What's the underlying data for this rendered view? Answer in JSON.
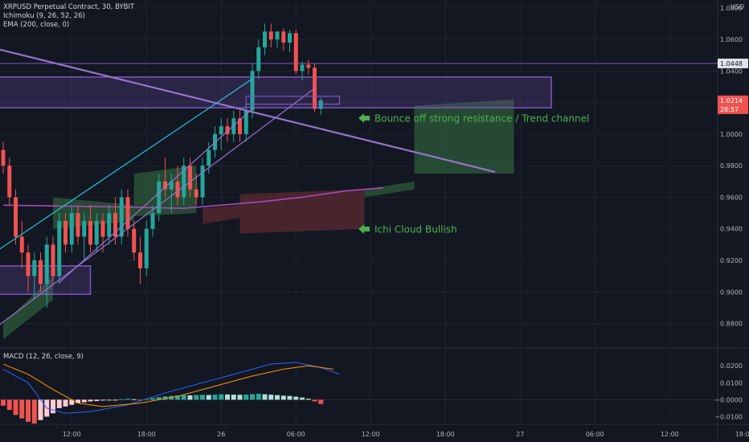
{
  "header": {
    "symbol_line": "XRPUSD Perpetual Contract, 30, BYBIT",
    "ichimoku_line": "Ichimoku (9, 26, 52, 26)",
    "ema_line": "EMA (200, close, 0)",
    "currency": "USD"
  },
  "macd": {
    "legend": "MACD (12, 26, close, 9)"
  },
  "annotations": {
    "resistance": "Bounce off strong resistance / Trend channel",
    "cloud": "Ichi Cloud Bullish"
  },
  "price_labels": {
    "level": "1.0448",
    "current": "1.0214",
    "countdown": "28:57"
  },
  "colors": {
    "background": "#131722",
    "bull": "#26a69a",
    "bear": "#ef5350",
    "zone": "#7e57c2",
    "trend": "#9575cd",
    "channel_upper": "#26c6da",
    "ema": "#ab47bc",
    "annotation": "#4caf50",
    "macd_line": "#2962ff",
    "signal_line": "#ff9800"
  },
  "chart_data": {
    "type": "candlestick",
    "y_axis": {
      "range": [
        0.865,
        1.085
      ],
      "ticks": [
        "1.0800",
        "1.0600",
        "1.0400",
        "1.0200",
        "1.0000",
        "0.9800",
        "0.9600",
        "0.9400",
        "0.9200",
        "0.9000",
        "0.8800"
      ]
    },
    "macd_axis": {
      "range": [
        -0.0145,
        0.0305
      ],
      "ticks": [
        "0.0200",
        "0.0100",
        "−0.0000",
        "−0.0100"
      ]
    },
    "x_ticks": [
      {
        "label": "12:00",
        "t": 11
      },
      {
        "label": "18:00",
        "t": 23
      },
      {
        "label": "26",
        "t": 35
      },
      {
        "label": "06:00",
        "t": 47
      },
      {
        "label": "12:00",
        "t": 59
      },
      {
        "label": "18:00",
        "t": 71
      },
      {
        "label": "27",
        "t": 83
      },
      {
        "label": "06:00",
        "t": 95
      },
      {
        "label": "12:00",
        "t": 107
      },
      {
        "label": "18:00",
        "t": 119
      }
    ],
    "candles": [
      [
        0.99,
        0.995,
        0.975,
        0.98
      ],
      [
        0.98,
        0.985,
        0.955,
        0.96
      ],
      [
        0.96,
        0.965,
        0.93,
        0.935
      ],
      [
        0.935,
        0.945,
        0.915,
        0.925
      ],
      [
        0.925,
        0.93,
        0.9,
        0.91
      ],
      [
        0.91,
        0.925,
        0.895,
        0.92
      ],
      [
        0.92,
        0.925,
        0.9,
        0.905
      ],
      [
        0.905,
        0.935,
        0.89,
        0.93
      ],
      [
        0.93,
        0.935,
        0.905,
        0.91
      ],
      [
        0.91,
        0.95,
        0.905,
        0.945
      ],
      [
        0.945,
        0.95,
        0.925,
        0.93
      ],
      [
        0.93,
        0.955,
        0.925,
        0.95
      ],
      [
        0.95,
        0.955,
        0.93,
        0.935
      ],
      [
        0.935,
        0.95,
        0.92,
        0.945
      ],
      [
        0.945,
        0.955,
        0.925,
        0.93
      ],
      [
        0.93,
        0.95,
        0.925,
        0.945
      ],
      [
        0.945,
        0.95,
        0.925,
        0.935
      ],
      [
        0.935,
        0.955,
        0.93,
        0.95
      ],
      [
        0.95,
        0.96,
        0.93,
        0.935
      ],
      [
        0.935,
        0.965,
        0.93,
        0.96
      ],
      [
        0.96,
        0.965,
        0.935,
        0.94
      ],
      [
        0.94,
        0.945,
        0.92,
        0.925
      ],
      [
        0.925,
        0.935,
        0.905,
        0.915
      ],
      [
        0.915,
        0.945,
        0.91,
        0.94
      ],
      [
        0.94,
        0.955,
        0.935,
        0.95
      ],
      [
        0.95,
        0.975,
        0.945,
        0.97
      ],
      [
        0.97,
        0.985,
        0.96,
        0.965
      ],
      [
        0.965,
        0.975,
        0.95,
        0.97
      ],
      [
        0.97,
        0.98,
        0.955,
        0.96
      ],
      [
        0.96,
        0.985,
        0.955,
        0.98
      ],
      [
        0.98,
        0.985,
        0.96,
        0.965
      ],
      [
        0.965,
        0.975,
        0.955,
        0.96
      ],
      [
        0.96,
        0.985,
        0.955,
        0.98
      ],
      [
        0.98,
        0.995,
        0.975,
        0.99
      ],
      [
        0.99,
        1.005,
        0.985,
        1.0
      ],
      [
        1.0,
        1.01,
        0.99,
        1.005
      ],
      [
        1.005,
        1.01,
        0.995,
        1.0
      ],
      [
        1.0,
        1.015,
        0.995,
        1.01
      ],
      [
        1.01,
        1.015,
        0.995,
        1.0
      ],
      [
        1.0,
        1.02,
        0.995,
        1.015
      ],
      [
        1.015,
        1.045,
        1.01,
        1.04
      ],
      [
        1.04,
        1.06,
        1.035,
        1.055
      ],
      [
        1.055,
        1.07,
        1.05,
        1.065
      ],
      [
        1.065,
        1.07,
        1.055,
        1.06
      ],
      [
        1.06,
        1.065,
        1.055,
        1.065
      ],
      [
        1.065,
        1.067,
        1.053,
        1.058
      ],
      [
        1.058,
        1.066,
        1.052,
        1.064
      ],
      [
        1.064,
        1.066,
        1.038,
        1.04
      ],
      [
        1.04,
        1.046,
        1.034,
        1.044
      ],
      [
        1.044,
        1.047,
        1.038,
        1.042
      ],
      [
        1.042,
        1.045,
        1.014,
        1.016
      ],
      [
        1.016,
        1.023,
        1.012,
        1.0214
      ]
    ],
    "ema200": [
      [
        0,
        0.955
      ],
      [
        16,
        0.954
      ],
      [
        29,
        0.953
      ],
      [
        41,
        0.957
      ],
      [
        48,
        0.96
      ],
      [
        55,
        0.964
      ],
      [
        61,
        0.966
      ]
    ],
    "cloud": [
      {
        "x1": 0,
        "x2": 8,
        "top": [
          0.88,
          0.91
        ],
        "bottom": [
          0.87,
          0.895
        ],
        "color": "bull"
      },
      {
        "x1": 8,
        "x2": 21,
        "top": [
          0.96,
          0.955
        ],
        "bottom": [
          0.94,
          0.945
        ],
        "color": "bull"
      },
      {
        "x1": 21,
        "x2": 31,
        "top": [
          0.975,
          0.98
        ],
        "bottom": [
          0.948,
          0.95
        ],
        "color": "bull"
      },
      {
        "x1": 32,
        "x2": 38,
        "top": [
          0.953,
          0.955
        ],
        "bottom": [
          0.943,
          0.947
        ],
        "color": "bear"
      },
      {
        "x1": 38,
        "x2": 58,
        "top": [
          0.962,
          0.965
        ],
        "bottom": [
          0.937,
          0.94
        ],
        "color": "bear"
      },
      {
        "x1": 58,
        "x2": 66,
        "top": [
          0.965,
          0.97
        ],
        "bottom": [
          0.96,
          0.965
        ],
        "color": "bull"
      },
      {
        "x1": 66,
        "x2": 82,
        "top": [
          1.018,
          1.022
        ],
        "bottom": [
          0.975,
          0.975
        ],
        "color": "bull"
      }
    ],
    "macd_hist": [
      -0.0035,
      -0.006,
      -0.009,
      -0.011,
      -0.013,
      -0.014,
      -0.012,
      -0.01,
      -0.008,
      -0.005,
      -0.004,
      -0.003,
      -0.002,
      -0.0015,
      -0.001,
      -0.0008,
      -0.0005,
      -0.0003,
      -0.0002,
      0.0003,
      0.0006,
      0.0003,
      -0.0002,
      0.0004,
      0.001,
      0.0015,
      0.002,
      0.0022,
      0.0025,
      0.0027,
      0.0026,
      0.0028,
      0.0029,
      0.0028,
      0.003,
      0.0032,
      0.0031,
      0.003,
      0.0029,
      0.003,
      0.0033,
      0.0035,
      0.0032,
      0.003,
      0.0027,
      0.0024,
      0.0022,
      0.0018,
      0.0013,
      0.0006,
      -0.001,
      -0.0025
    ],
    "macd_line": [
      [
        0,
        0.018
      ],
      [
        4,
        0.01
      ],
      [
        7,
        -0.005
      ],
      [
        10,
        -0.008
      ],
      [
        14,
        -0.007
      ],
      [
        20,
        -0.003
      ],
      [
        26,
        0.004
      ],
      [
        32,
        0.01
      ],
      [
        38,
        0.016
      ],
      [
        43,
        0.021
      ],
      [
        47,
        0.022
      ],
      [
        51,
        0.019
      ],
      [
        54,
        0.015
      ]
    ],
    "signal_line": [
      [
        0,
        0.021
      ],
      [
        4,
        0.015
      ],
      [
        8,
        0.006
      ],
      [
        12,
        -0.002
      ],
      [
        16,
        -0.004
      ],
      [
        22,
        -0.002
      ],
      [
        28,
        0.002
      ],
      [
        34,
        0.008
      ],
      [
        40,
        0.014
      ],
      [
        45,
        0.018
      ],
      [
        49,
        0.02
      ],
      [
        53,
        0.018
      ]
    ],
    "zones": [
      {
        "t1": -1,
        "t2": 88,
        "y1": 1.0362,
        "y2": 1.0167
      },
      {
        "t1": -1,
        "t2": 14,
        "y1": 0.9165,
        "y2": 0.8985
      }
    ],
    "lines": [
      {
        "name": "trend-line",
        "t1": -1,
        "y1": 1.054,
        "t2": 79,
        "y2": 0.976,
        "color": "trend"
      },
      {
        "name": "channel-upper",
        "t1": -1,
        "y1": 0.926,
        "t2": 40,
        "y2": 1.035,
        "color": "channel_upper"
      },
      {
        "name": "channel-lower",
        "t1": -1,
        "y1": 0.878,
        "t2": 50,
        "y2": 1.029,
        "color": "trend"
      },
      {
        "name": "channel-lower-2",
        "t1": 9,
        "y1": 0.906,
        "t2": 40,
        "y2": 1.016,
        "color": "trend"
      }
    ]
  }
}
